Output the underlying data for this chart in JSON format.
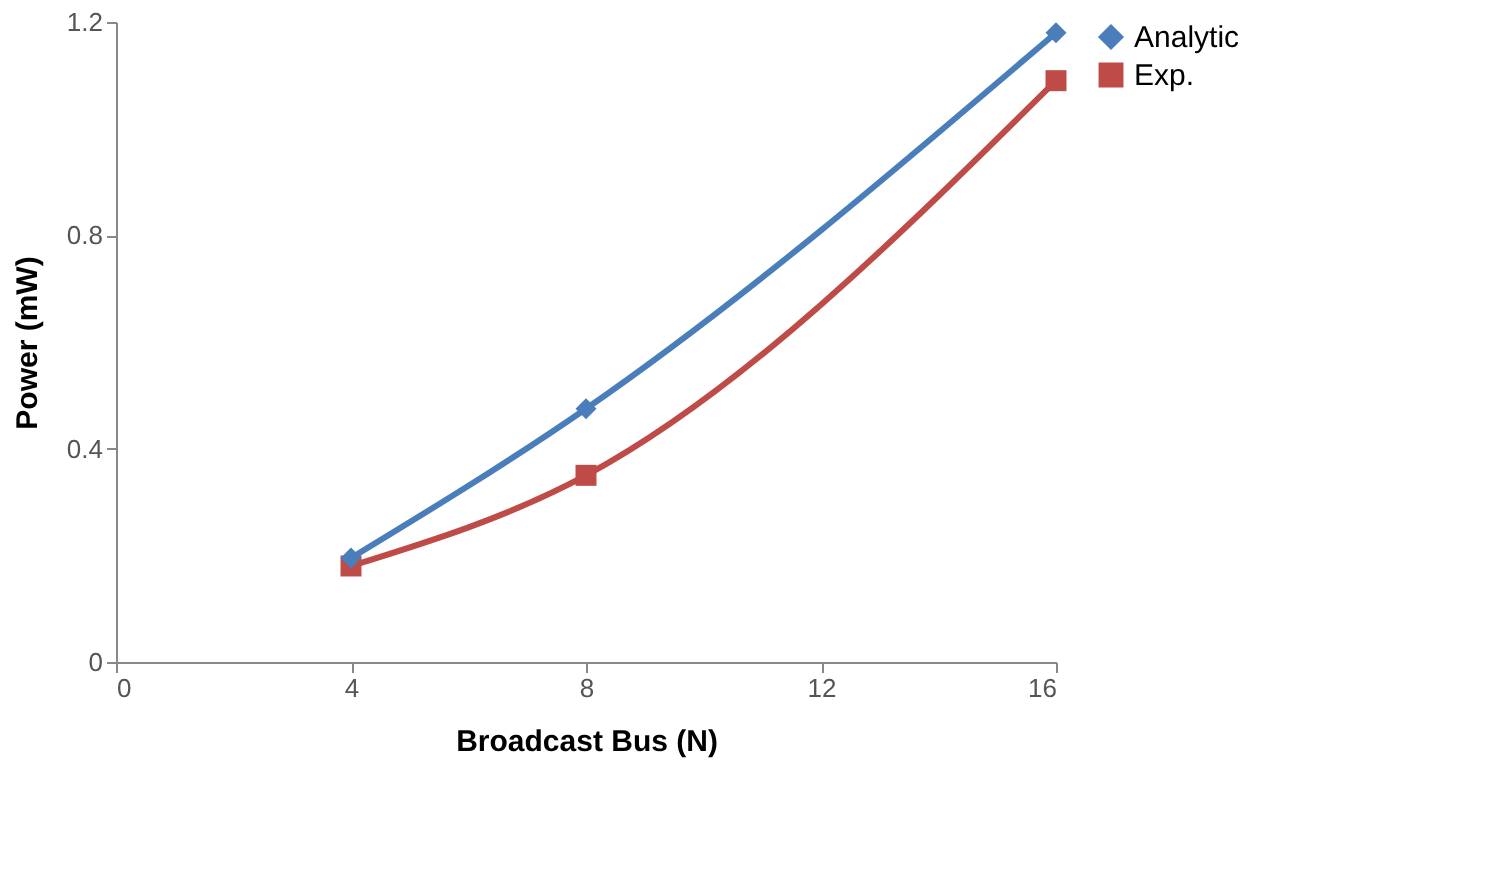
{
  "chart_data": {
    "type": "line",
    "xlabel": "Broadcast Bus (N)",
    "ylabel": "Power (mW)",
    "x": [
      4,
      8,
      16
    ],
    "series": [
      {
        "name": "Analytic",
        "color": "#4a7ebb",
        "marker": "diamond",
        "values": [
          0.195,
          0.475,
          1.18
        ]
      },
      {
        "name": "Exp.",
        "color": "#be4b48",
        "marker": "square",
        "values": [
          0.18,
          0.35,
          1.09
        ]
      }
    ],
    "xlim": [
      0,
      16
    ],
    "xticks": [
      0,
      4,
      8,
      12,
      16
    ],
    "ylim": [
      0,
      1.2
    ],
    "yticks": [
      0,
      0.4,
      0.8,
      1.2
    ],
    "grid": false,
    "legend": "right",
    "line_style": "solid"
  }
}
